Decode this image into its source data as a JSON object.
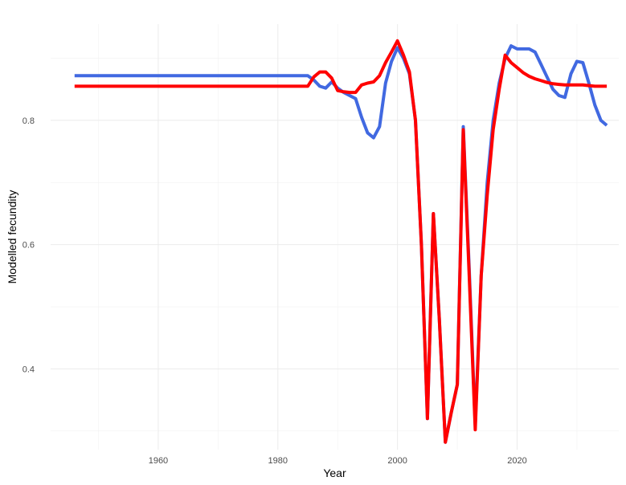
{
  "chart_data": {
    "type": "line",
    "title": "",
    "xlabel": "Year",
    "ylabel": "Modelled fecundity",
    "xlim": [
      1942,
      2037
    ],
    "ylim": [
      0.27,
      0.955
    ],
    "x_ticks": [
      1960,
      1980,
      2000,
      2020
    ],
    "x_tick_labels": [
      "1960",
      "1980",
      "2000",
      "2020"
    ],
    "y_ticks": [
      0.4,
      0.6,
      0.8
    ],
    "y_tick_labels": [
      "0.4",
      "0.6",
      "0.8"
    ],
    "grid": true,
    "legend": "none",
    "series": [
      {
        "color": "#4169E1",
        "points": [
          [
            1946,
            0.872
          ],
          [
            1984,
            0.872
          ],
          [
            1985,
            0.872
          ],
          [
            1986,
            0.865
          ],
          [
            1987,
            0.855
          ],
          [
            1988,
            0.852
          ],
          [
            1989,
            0.862
          ],
          [
            1990,
            0.852
          ],
          [
            1991,
            0.845
          ],
          [
            1992,
            0.84
          ],
          [
            1993,
            0.835
          ],
          [
            1994,
            0.805
          ],
          [
            1995,
            0.78
          ],
          [
            1996,
            0.772
          ],
          [
            1997,
            0.79
          ],
          [
            1998,
            0.86
          ],
          [
            1999,
            0.895
          ],
          [
            2000,
            0.917
          ],
          [
            2001,
            0.9
          ],
          [
            2002,
            0.875
          ],
          [
            2003,
            0.8
          ],
          [
            2004,
            0.6
          ],
          [
            2005,
            0.32
          ],
          [
            2006,
            0.65
          ],
          [
            2007,
            0.48
          ],
          [
            2008,
            0.282
          ],
          [
            2009,
            0.33
          ],
          [
            2010,
            0.375
          ],
          [
            2011,
            0.79
          ],
          [
            2012,
            0.56
          ],
          [
            2013,
            0.31
          ],
          [
            2014,
            0.55
          ],
          [
            2015,
            0.7
          ],
          [
            2016,
            0.8
          ],
          [
            2017,
            0.86
          ],
          [
            2018,
            0.9
          ],
          [
            2019,
            0.92
          ],
          [
            2020,
            0.915
          ],
          [
            2021,
            0.915
          ],
          [
            2022,
            0.915
          ],
          [
            2023,
            0.91
          ],
          [
            2024,
            0.89
          ],
          [
            2025,
            0.87
          ],
          [
            2026,
            0.85
          ],
          [
            2027,
            0.84
          ],
          [
            2028,
            0.837
          ],
          [
            2029,
            0.875
          ],
          [
            2030,
            0.895
          ],
          [
            2031,
            0.893
          ],
          [
            2032,
            0.86
          ],
          [
            2033,
            0.825
          ],
          [
            2034,
            0.8
          ],
          [
            2035,
            0.792
          ]
        ]
      },
      {
        "color": "#FF0000",
        "points": [
          [
            1946,
            0.855
          ],
          [
            1985,
            0.855
          ],
          [
            1986,
            0.87
          ],
          [
            1987,
            0.878
          ],
          [
            1988,
            0.878
          ],
          [
            1989,
            0.868
          ],
          [
            1990,
            0.848
          ],
          [
            1991,
            0.846
          ],
          [
            1992,
            0.845
          ],
          [
            1993,
            0.845
          ],
          [
            1994,
            0.857
          ],
          [
            1995,
            0.86
          ],
          [
            1996,
            0.862
          ],
          [
            1997,
            0.872
          ],
          [
            1998,
            0.893
          ],
          [
            1999,
            0.91
          ],
          [
            2000,
            0.928
          ],
          [
            2001,
            0.905
          ],
          [
            2002,
            0.878
          ],
          [
            2003,
            0.8
          ],
          [
            2004,
            0.6
          ],
          [
            2005,
            0.32
          ],
          [
            2006,
            0.65
          ],
          [
            2007,
            0.48
          ],
          [
            2008,
            0.282
          ],
          [
            2009,
            0.33
          ],
          [
            2010,
            0.375
          ],
          [
            2011,
            0.785
          ],
          [
            2012,
            0.55
          ],
          [
            2013,
            0.302
          ],
          [
            2014,
            0.55
          ],
          [
            2015,
            0.68
          ],
          [
            2016,
            0.785
          ],
          [
            2017,
            0.85
          ],
          [
            2018,
            0.905
          ],
          [
            2019,
            0.893
          ],
          [
            2020,
            0.885
          ],
          [
            2021,
            0.877
          ],
          [
            2022,
            0.871
          ],
          [
            2023,
            0.867
          ],
          [
            2024,
            0.864
          ],
          [
            2025,
            0.861
          ],
          [
            2026,
            0.859
          ],
          [
            2027,
            0.858
          ],
          [
            2028,
            0.857
          ],
          [
            2029,
            0.857
          ],
          [
            2030,
            0.857
          ],
          [
            2031,
            0.857
          ],
          [
            2032,
            0.856
          ],
          [
            2033,
            0.855
          ],
          [
            2034,
            0.855
          ],
          [
            2035,
            0.855
          ]
        ]
      }
    ]
  }
}
